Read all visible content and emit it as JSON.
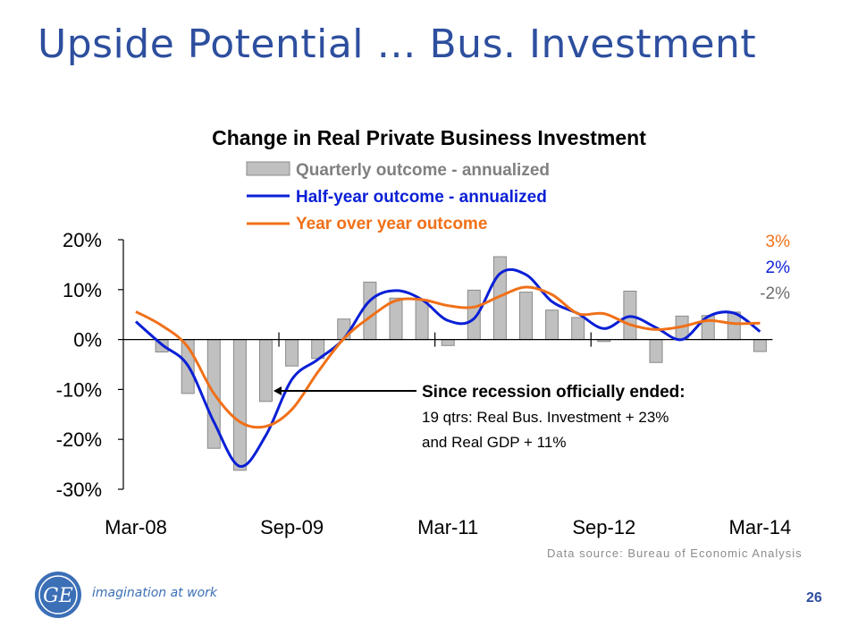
{
  "slide": {
    "title": "Upside Potential … Bus. Investment",
    "page_number": "26",
    "source": "Data source:  Bureau of Economic Analysis",
    "tagline": "imagination at work",
    "logo_text": "GE"
  },
  "colors": {
    "title": "#2e4f9e",
    "bars": "#c0c0c0",
    "half_year": "#0a1fd6",
    "yoy": "#f07018",
    "end_label_quarterly": "#6e6e6e"
  },
  "chart_data": {
    "type": "bar",
    "title": "Change in Real Private Business Investment",
    "ylim": [
      -30,
      20
    ],
    "yticks": [
      20,
      10,
      0,
      -10,
      -20,
      -30
    ],
    "ytick_labels": [
      "20%",
      "10%",
      "0%",
      "-10%",
      "-20%",
      "-30%"
    ],
    "xtick_labels": [
      "Mar-08",
      "Sep-09",
      "Mar-11",
      "Sep-12",
      "Mar-14"
    ],
    "categories": [
      "Mar-08",
      "Jun-08",
      "Sep-08",
      "Dec-08",
      "Mar-09",
      "Jun-09",
      "Sep-09",
      "Dec-09",
      "Mar-10",
      "Jun-10",
      "Sep-10",
      "Dec-10",
      "Mar-11",
      "Jun-11",
      "Sep-11",
      "Dec-11",
      "Mar-12",
      "Jun-12",
      "Sep-12",
      "Dec-12",
      "Mar-13",
      "Jun-13",
      "Sep-13",
      "Dec-13",
      "Mar-14"
    ],
    "legend": [
      "Quarterly outcome - annualized",
      "Half-year outcome - annualized",
      "Year over year outcome"
    ],
    "legend_position": "top",
    "series": [
      {
        "name": "Quarterly outcome - annualized",
        "type": "bar",
        "values": [
          null,
          -2.5,
          -10.8,
          -21.8,
          -26.2,
          -12.4,
          -5.3,
          -3.8,
          4.1,
          11.5,
          8.3,
          8.0,
          -1.2,
          9.9,
          16.6,
          9.5,
          5.9,
          4.4,
          -0.4,
          9.7,
          -4.6,
          4.7,
          4.8,
          5.5,
          -2.4
        ]
      },
      {
        "name": "Half-year outcome - annualized",
        "type": "line",
        "values": [
          3.6,
          -1.0,
          -5.2,
          -16.5,
          -25.4,
          -19.2,
          -8.0,
          -4.0,
          0.2,
          7.8,
          9.8,
          8.0,
          3.8,
          4.2,
          13.2,
          13.0,
          7.6,
          5.2,
          2.2,
          4.6,
          2.4,
          0.0,
          4.6,
          5.3,
          1.6
        ]
      },
      {
        "name": "Year over year outcome",
        "type": "line",
        "values": [
          5.6,
          2.8,
          -1.5,
          -10.8,
          -16.5,
          -17.4,
          -14.0,
          -6.5,
          0.2,
          4.5,
          7.8,
          8.0,
          6.8,
          6.5,
          8.7,
          10.5,
          9.0,
          5.2,
          5.2,
          3.0,
          2.0,
          2.6,
          3.8,
          3.2,
          3.3
        ]
      }
    ],
    "end_labels": [
      {
        "series": "Year over year outcome",
        "text": "3%"
      },
      {
        "series": "Half-year outcome - annualized",
        "text": "2%"
      },
      {
        "series": "Quarterly outcome - annualized",
        "text": "-2%"
      }
    ],
    "annotation": {
      "line1": "Since recession officially ended:",
      "line2": "19 qtrs: Real Bus. Investment + 23%",
      "line3": "and Real GDP + 11%",
      "arrow_target_category": "Jun-09"
    }
  }
}
